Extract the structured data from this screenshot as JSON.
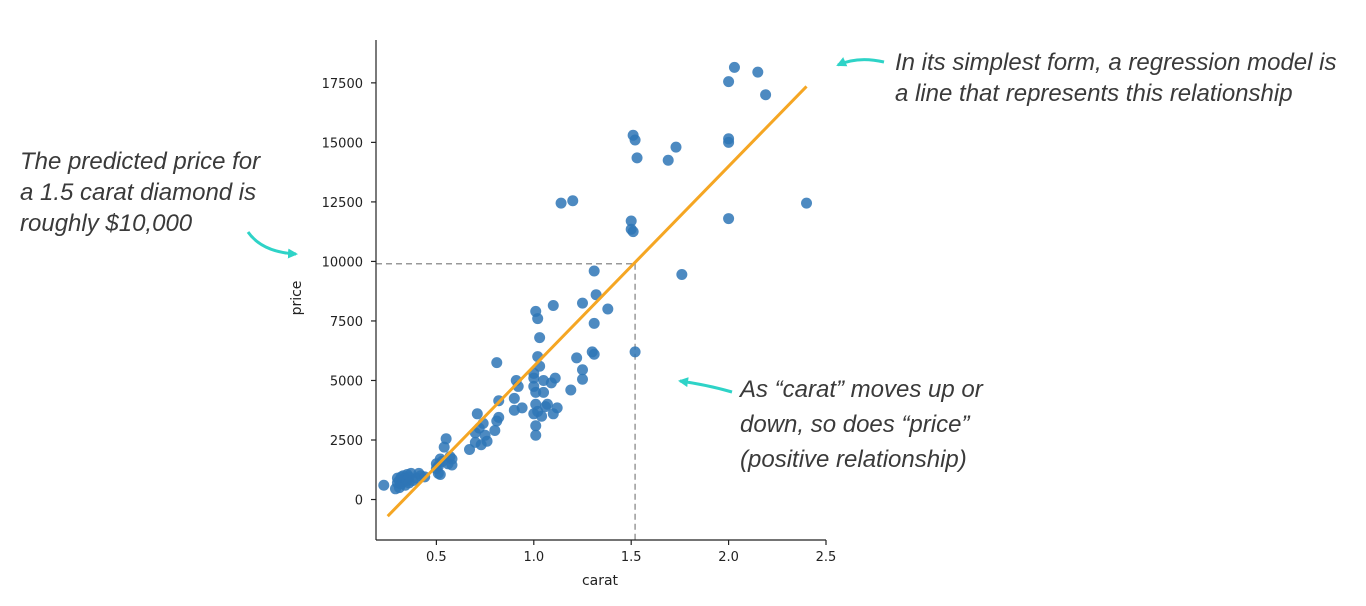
{
  "chart_data": {
    "type": "scatter",
    "xlabel": "carat",
    "ylabel": "price",
    "xlim": [
      0.19,
      2.5
    ],
    "ylim": [
      -1700,
      19300
    ],
    "xticks": [
      0.5,
      1.0,
      1.5,
      2.0,
      2.5
    ],
    "xtick_labels": [
      "0.5",
      "1.0",
      "1.5",
      "2.0",
      "2.5"
    ],
    "yticks": [
      0,
      2500,
      5000,
      7500,
      10000,
      12500,
      15000,
      17500
    ],
    "ytick_labels": [
      "0",
      "2500",
      "5000",
      "7500",
      "10000",
      "12500",
      "15000",
      "17500"
    ],
    "grid": false,
    "colors": {
      "points": "#2e75b6",
      "regression_line": "#f5a623",
      "reference_line": "#999999",
      "arrows": "#2ed3c7"
    },
    "points": [
      [
        0.23,
        600
      ],
      [
        0.29,
        450
      ],
      [
        0.3,
        700
      ],
      [
        0.3,
        900
      ],
      [
        0.31,
        500
      ],
      [
        0.31,
        800
      ],
      [
        0.32,
        950
      ],
      [
        0.32,
        650
      ],
      [
        0.33,
        1000
      ],
      [
        0.33,
        750
      ],
      [
        0.34,
        600
      ],
      [
        0.34,
        900
      ],
      [
        0.35,
        1050
      ],
      [
        0.35,
        800
      ],
      [
        0.36,
        700
      ],
      [
        0.36,
        950
      ],
      [
        0.37,
        1100
      ],
      [
        0.38,
        800
      ],
      [
        0.4,
        900
      ],
      [
        0.41,
        1100
      ],
      [
        0.42,
        1000
      ],
      [
        0.44,
        950
      ],
      [
        0.5,
        1300
      ],
      [
        0.5,
        1500
      ],
      [
        0.51,
        1400
      ],
      [
        0.51,
        1100
      ],
      [
        0.52,
        1050
      ],
      [
        0.52,
        1700
      ],
      [
        0.53,
        1600
      ],
      [
        0.54,
        2200
      ],
      [
        0.55,
        2550
      ],
      [
        0.56,
        1500
      ],
      [
        0.57,
        1800
      ],
      [
        0.58,
        1700
      ],
      [
        0.58,
        1450
      ],
      [
        0.67,
        2100
      ],
      [
        0.7,
        2400
      ],
      [
        0.7,
        2800
      ],
      [
        0.71,
        3600
      ],
      [
        0.72,
        3000
      ],
      [
        0.73,
        2300
      ],
      [
        0.74,
        3200
      ],
      [
        0.75,
        2700
      ],
      [
        0.76,
        2450
      ],
      [
        0.8,
        2900
      ],
      [
        0.81,
        3300
      ],
      [
        0.82,
        3450
      ],
      [
        0.81,
        5750
      ],
      [
        0.82,
        4150
      ],
      [
        0.9,
        4250
      ],
      [
        0.9,
        3750
      ],
      [
        0.91,
        5000
      ],
      [
        0.92,
        4750
      ],
      [
        0.94,
        3850
      ],
      [
        1.0,
        3600
      ],
      [
        1.0,
        4750
      ],
      [
        1.0,
        5100
      ],
      [
        1.0,
        5300
      ],
      [
        1.01,
        2700
      ],
      [
        1.01,
        3100
      ],
      [
        1.01,
        4000
      ],
      [
        1.01,
        4500
      ],
      [
        1.02,
        3700
      ],
      [
        1.02,
        6000
      ],
      [
        1.01,
        7900
      ],
      [
        1.02,
        7600
      ],
      [
        1.03,
        6800
      ],
      [
        1.03,
        5600
      ],
      [
        1.04,
        3500
      ],
      [
        1.05,
        5000
      ],
      [
        1.05,
        4500
      ],
      [
        1.06,
        3900
      ],
      [
        1.07,
        4000
      ],
      [
        1.09,
        4900
      ],
      [
        1.1,
        3600
      ],
      [
        1.1,
        8150
      ],
      [
        1.11,
        5100
      ],
      [
        1.12,
        3850
      ],
      [
        1.14,
        12450
      ],
      [
        1.2,
        12550
      ],
      [
        1.19,
        4600
      ],
      [
        1.22,
        5950
      ],
      [
        1.25,
        5450
      ],
      [
        1.25,
        5050
      ],
      [
        1.25,
        8250
      ],
      [
        1.3,
        6200
      ],
      [
        1.31,
        6100
      ],
      [
        1.31,
        7400
      ],
      [
        1.32,
        8600
      ],
      [
        1.31,
        9600
      ],
      [
        1.38,
        8000
      ],
      [
        1.5,
        11700
      ],
      [
        1.5,
        11350
      ],
      [
        1.51,
        11250
      ],
      [
        1.52,
        6200
      ],
      [
        1.51,
        15300
      ],
      [
        1.52,
        15100
      ],
      [
        1.53,
        14350
      ],
      [
        1.69,
        14250
      ],
      [
        1.73,
        14800
      ],
      [
        1.76,
        9450
      ],
      [
        2.0,
        11800
      ],
      [
        2.0,
        15000
      ],
      [
        2.0,
        15150
      ],
      [
        2.0,
        17550
      ],
      [
        2.03,
        18150
      ],
      [
        2.15,
        17950
      ],
      [
        2.19,
        17000
      ],
      [
        2.4,
        12450
      ]
    ],
    "regression_line": {
      "x": [
        0.25,
        2.4
      ],
      "y": [
        -700,
        17350
      ]
    },
    "prediction": {
      "x": 1.52,
      "y": 9900
    }
  },
  "annotations": {
    "top_right": [
      "In its simplest form, a regression model is",
      "a line that represents this relationship"
    ],
    "left": [
      "The predicted price for",
      "a 1.5 carat diamond is",
      "roughly $10,000"
    ],
    "middle_right": [
      "As “carat” moves up or",
      "down, so does “price”",
      "(positive relationship)"
    ]
  }
}
